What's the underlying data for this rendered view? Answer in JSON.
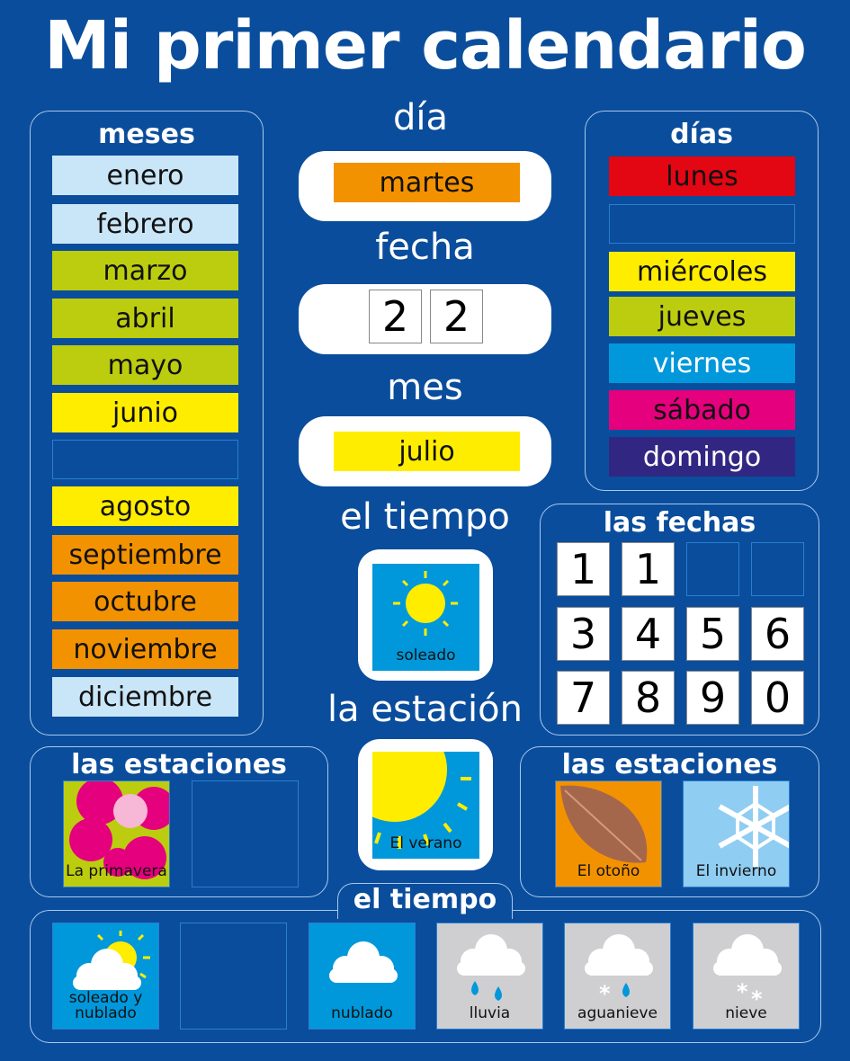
{
  "title": "Mi primer calendario",
  "colors": {
    "background": "#0a4d9c",
    "light_blue": "#c9e6f8",
    "green": "#bccd0f",
    "yellow": "#ffed00",
    "orange": "#f39200",
    "red": "#e30613",
    "blue": "#0098db",
    "magenta": "#e5007d",
    "purple": "#312783"
  },
  "months": {
    "heading": "meses",
    "items": [
      {
        "label": "enero",
        "color": "#c9e6f8"
      },
      {
        "label": "febrero",
        "color": "#c9e6f8"
      },
      {
        "label": "marzo",
        "color": "#bccd0f"
      },
      {
        "label": "abril",
        "color": "#bccd0f"
      },
      {
        "label": "mayo",
        "color": "#bccd0f"
      },
      {
        "label": "junio",
        "color": "#ffed00"
      },
      {
        "label": "",
        "color": ""
      },
      {
        "label": "agosto",
        "color": "#ffed00"
      },
      {
        "label": "septiembre",
        "color": "#f39200"
      },
      {
        "label": "octubre",
        "color": "#f39200"
      },
      {
        "label": "noviembre",
        "color": "#f39200"
      },
      {
        "label": "diciembre",
        "color": "#c9e6f8"
      }
    ]
  },
  "days": {
    "heading": "días",
    "items": [
      {
        "label": "lunes",
        "color": "#e30613"
      },
      {
        "label": "",
        "color": ""
      },
      {
        "label": "miércoles",
        "color": "#ffed00"
      },
      {
        "label": "jueves",
        "color": "#bccd0f"
      },
      {
        "label": "viernes",
        "color": "#0098db"
      },
      {
        "label": "sábado",
        "color": "#e5007d"
      },
      {
        "label": "domingo",
        "color": "#312783"
      }
    ]
  },
  "current": {
    "day_label": "día",
    "day": "martes",
    "date_label": "fecha",
    "date_digits": [
      "2",
      "2"
    ],
    "month_label": "mes",
    "month": "julio",
    "weather_label": "el tiempo",
    "weather": "soleado",
    "season_label": "la estación",
    "season": "El verano"
  },
  "dates": {
    "heading": "las fechas",
    "rows": [
      [
        "1",
        "1",
        "",
        ""
      ],
      [
        "3",
        "4",
        "5",
        "6"
      ],
      [
        "7",
        "8",
        "9",
        "0"
      ]
    ]
  },
  "seasons_left": {
    "heading": "las estaciones",
    "items": [
      "La primavera",
      ""
    ]
  },
  "seasons_right": {
    "heading": "las estaciones",
    "items": [
      "El otoño",
      "El invierno"
    ]
  },
  "weather": {
    "heading": "el tiempo",
    "items": [
      "soleado y nublado",
      "",
      "nublado",
      "lluvia",
      "aguanieve",
      "nieve"
    ]
  }
}
